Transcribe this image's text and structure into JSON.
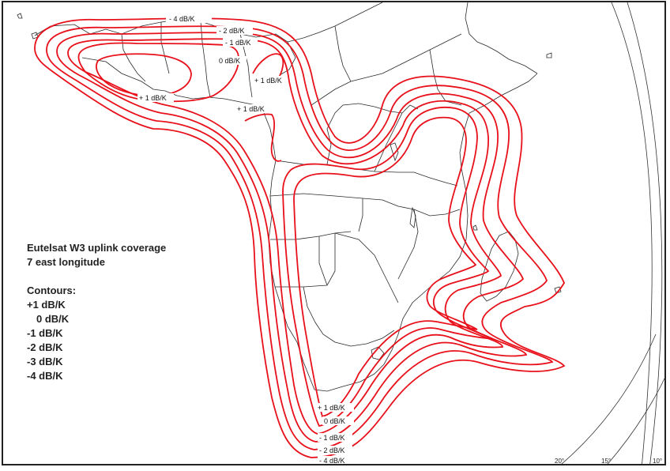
{
  "map": {
    "title_line1": "Eutelsat W3 uplink coverage",
    "title_line2": "7 east longitude",
    "contours_heading": "Contours:",
    "contour_list": [
      "+1 dB/K",
      "0 dB/K",
      "-1 dB/K",
      "-2 dB/K",
      "-3 dB/K",
      "-4 dB/K"
    ],
    "north_labels": {
      "m4": "- 4 dB/K",
      "m2": "- 2 dB/K",
      "m1": "- 1 dB/K",
      "z0": "0 dB/K",
      "p1a": "+ 1 dB/K",
      "p1b": "+ 1 dB/K",
      "p1c": "+ 1 dB/K"
    },
    "south_labels": {
      "p1": "+ 1 dB/K",
      "z0": "0 dB/K",
      "m1": "- 1 dB/K",
      "m2": "- 2 dB/K",
      "m4": "- 4 dB/K"
    },
    "longitude_labels": [
      "20°",
      "15°",
      "10°"
    ],
    "contour_color": "#e8101a",
    "border_color": "#2a2a2a"
  }
}
